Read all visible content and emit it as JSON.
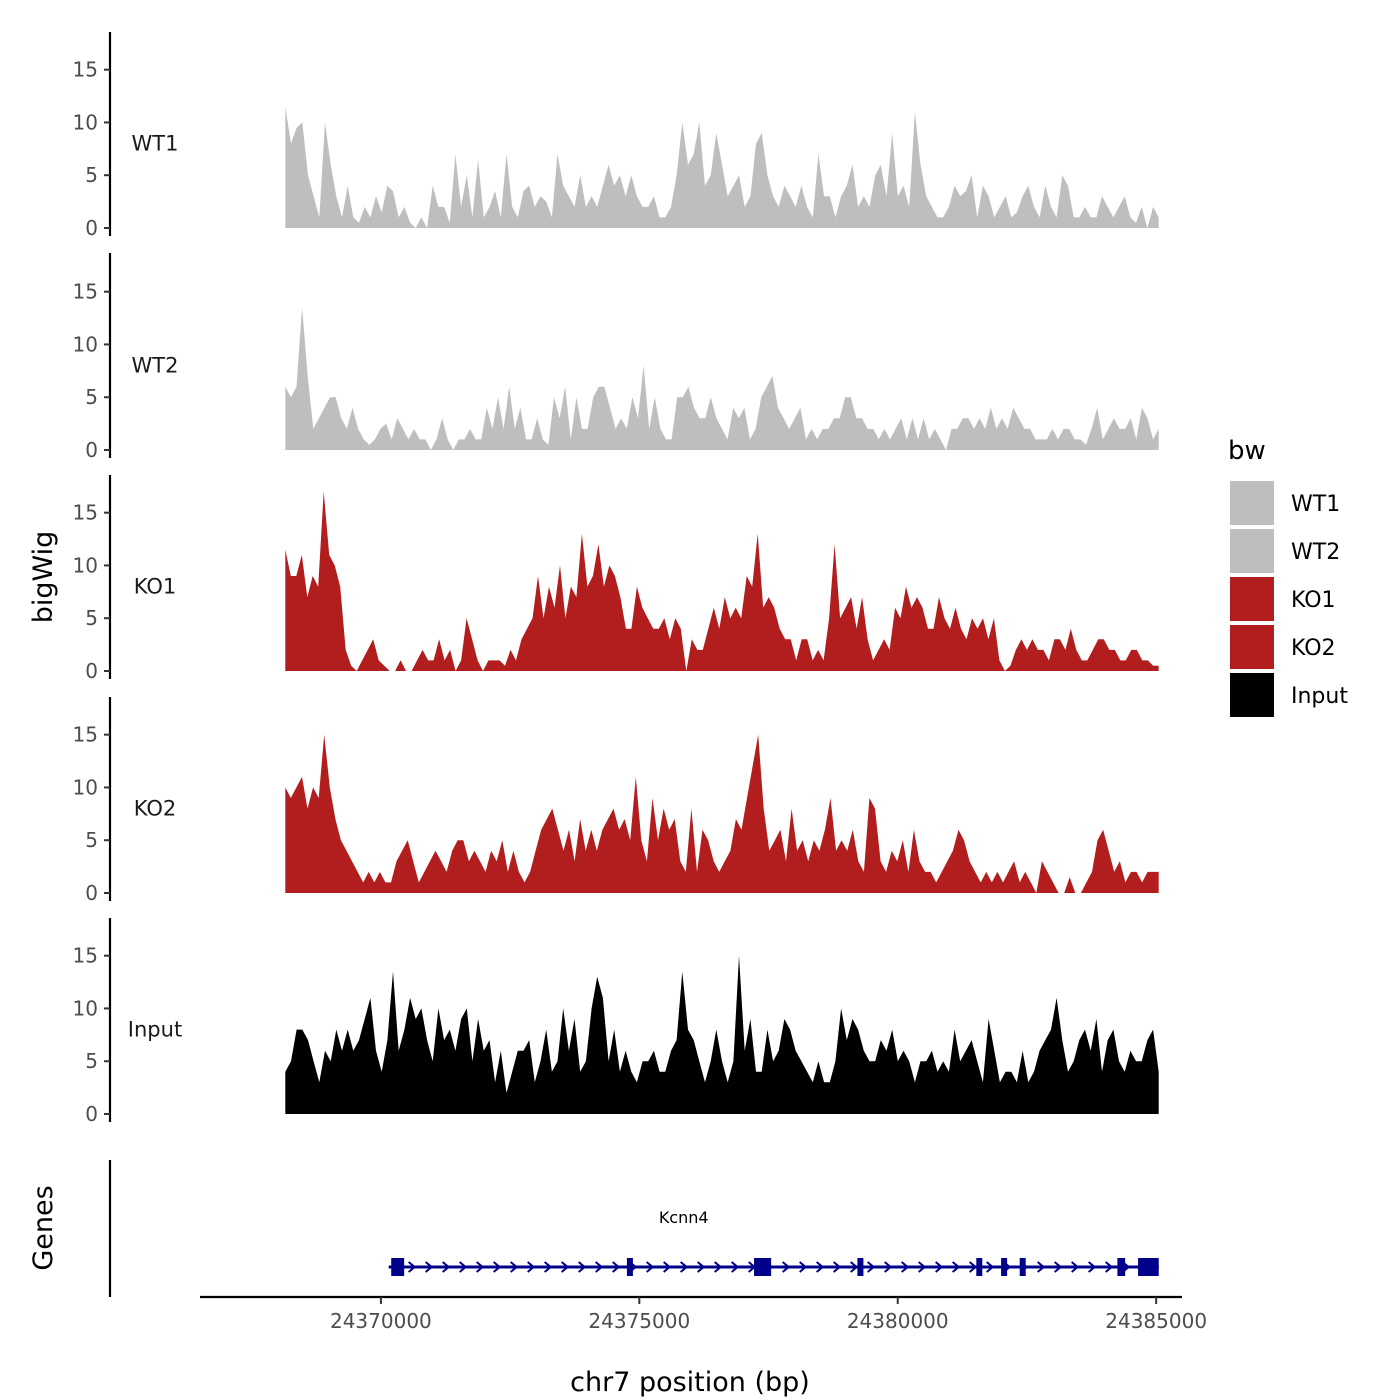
{
  "chart_data": {
    "type": "area",
    "title": "",
    "ylabel": "bigWig",
    "xlabel": "chr7 position (bp)",
    "x_range": [
      24366500,
      24385500
    ],
    "x_ticks": [
      24370000,
      24375000,
      24380000,
      24385000
    ],
    "x_tick_labels": [
      "24370000",
      "24375000",
      "24380000",
      "24385000"
    ],
    "ylim": [
      0,
      18
    ],
    "y_ticks": [
      0,
      5,
      10,
      15
    ],
    "y_tick_labels": [
      "0",
      "5",
      "10",
      "15"
    ],
    "data_start": 24368150,
    "data_end": 24385050,
    "grid": false,
    "legend_position": "right",
    "legend": {
      "title": "bw",
      "entries": [
        {
          "label": "WT1",
          "color": "#bebebe"
        },
        {
          "label": "WT2",
          "color": "#bebebe"
        },
        {
          "label": "KO1",
          "color": "#b21e1e"
        },
        {
          "label": "KO2",
          "color": "#b21e1e"
        },
        {
          "label": "Input",
          "color": "#000000"
        }
      ]
    },
    "series": [
      {
        "name": "WT1",
        "color": "#bebebe",
        "values": [
          11.5,
          8,
          9.5,
          10,
          5,
          3,
          1,
          10,
          6,
          3,
          1,
          4,
          1,
          0.5,
          2,
          1,
          3,
          1.5,
          4,
          3.5,
          1,
          2,
          0.5,
          0,
          1,
          0,
          4,
          2,
          2,
          0.5,
          7,
          2,
          5,
          1,
          6.5,
          1,
          2,
          3.5,
          1,
          7,
          2,
          1,
          3.5,
          4,
          2,
          3,
          2.5,
          1,
          7,
          4,
          3,
          2,
          5,
          2,
          3,
          2,
          4,
          6,
          4,
          5,
          3,
          5,
          3,
          2,
          2,
          3,
          1,
          1,
          2,
          5,
          10,
          6,
          7,
          10,
          4,
          5,
          9,
          6,
          3,
          4,
          5,
          2,
          3,
          8,
          9,
          5,
          3,
          2,
          4,
          3,
          2,
          4,
          2,
          1,
          7,
          3,
          3,
          1,
          3,
          4,
          6,
          2,
          3,
          2,
          5,
          6,
          3,
          9,
          3,
          4,
          2,
          11,
          6,
          3,
          2,
          1,
          1,
          2,
          4,
          3,
          3.5,
          5,
          1,
          4,
          3,
          1,
          2,
          3,
          1,
          1.5,
          3,
          4,
          2,
          1,
          4,
          2,
          1,
          5,
          4,
          1,
          1,
          2,
          1,
          1,
          3,
          2,
          1,
          2,
          3,
          1,
          0.5,
          2,
          0,
          2,
          1
        ]
      },
      {
        "name": "WT2",
        "color": "#bebebe",
        "values": [
          6,
          5,
          6,
          13.5,
          7,
          2,
          3,
          4,
          5,
          5,
          3,
          2,
          4,
          2,
          1,
          0.5,
          1,
          2,
          2.5,
          1,
          3,
          2,
          1,
          2,
          1,
          1,
          0,
          1,
          3,
          1,
          0,
          1,
          1,
          2,
          1,
          1,
          4,
          2,
          5,
          2,
          6,
          2,
          4,
          1,
          1,
          3,
          1,
          0.5,
          5,
          3,
          6,
          1,
          5,
          2,
          2,
          5,
          6,
          6,
          4,
          2,
          3,
          2,
          5,
          3,
          8,
          2,
          5,
          2,
          1,
          1,
          5,
          5,
          6,
          4,
          3,
          3,
          5,
          3,
          2,
          1,
          4,
          3,
          4,
          1,
          2,
          5,
          6,
          7,
          4,
          3,
          2,
          3,
          4,
          1,
          2,
          1,
          2,
          2,
          3,
          3,
          5,
          5,
          3,
          3,
          2,
          2,
          1,
          2,
          1,
          2,
          3,
          1,
          3,
          1,
          3,
          1,
          2,
          1,
          0,
          2,
          2,
          3,
          3,
          2,
          3,
          2,
          4,
          2,
          3,
          2,
          4,
          3,
          2,
          2,
          1,
          1,
          1,
          2,
          1,
          2,
          2,
          1,
          1,
          0.5,
          2,
          4,
          1,
          2,
          3,
          2,
          2,
          3,
          1,
          4,
          3,
          1,
          2
        ]
      },
      {
        "name": "KO1",
        "color": "#b21e1e",
        "values": [
          11.5,
          9,
          9,
          11,
          7,
          9,
          8,
          17,
          11,
          10,
          8,
          2,
          0.5,
          0,
          1,
          2,
          3,
          1,
          0.5,
          0,
          0,
          1,
          0,
          0,
          1,
          2,
          1,
          1,
          3,
          1,
          2,
          0,
          1,
          5,
          3,
          1,
          0,
          1,
          1,
          1,
          0.5,
          2,
          1,
          3,
          4,
          5,
          9,
          5,
          8,
          6,
          10,
          5,
          8,
          7,
          13,
          8,
          9,
          12,
          8,
          10,
          9,
          7,
          4,
          4,
          8,
          6,
          5,
          4,
          4,
          5,
          3,
          5,
          4,
          0,
          3,
          2,
          2,
          4,
          6,
          4,
          7,
          5,
          6,
          5,
          9,
          8,
          13,
          6,
          7,
          6,
          4,
          3,
          3,
          1,
          3,
          3,
          1,
          2,
          1,
          5,
          12,
          5,
          6,
          7,
          4,
          7,
          3,
          1,
          2,
          3,
          2,
          6,
          5,
          8,
          6,
          7,
          6,
          4,
          4,
          7,
          5,
          4,
          6,
          4,
          3,
          5,
          4,
          5,
          3,
          5,
          1,
          0,
          0.5,
          2,
          3,
          2,
          3,
          2,
          2,
          1,
          3,
          3,
          2,
          4,
          2,
          1,
          1,
          2,
          3,
          3,
          2,
          2,
          1,
          1,
          2,
          2,
          1,
          1,
          0.5,
          0.5
        ]
      },
      {
        "name": "KO2",
        "color": "#b21e1e",
        "values": [
          10,
          9,
          10,
          11,
          8,
          10,
          9,
          15,
          10,
          7,
          5,
          4,
          3,
          2,
          1,
          2,
          1,
          2,
          1,
          1,
          3,
          4,
          5,
          3,
          1,
          2,
          3,
          4,
          3,
          2,
          4,
          5,
          5,
          3,
          4,
          3,
          2,
          4,
          3,
          5,
          2,
          4,
          2,
          1,
          2,
          4,
          6,
          7,
          8,
          6,
          4,
          6,
          3,
          7,
          4,
          6,
          4,
          6,
          7,
          8,
          6,
          7,
          5,
          11,
          5,
          3,
          9,
          5,
          8,
          6,
          7,
          3,
          2,
          8,
          2,
          6,
          5,
          3,
          2,
          3,
          4,
          7,
          6,
          9,
          12,
          15,
          8,
          4,
          5,
          6,
          3,
          8,
          4,
          5,
          3,
          5,
          4,
          6,
          9,
          4,
          5,
          4,
          6,
          3,
          2,
          9,
          8,
          3,
          2,
          4,
          3,
          5,
          2,
          6,
          3,
          2,
          2,
          1,
          2,
          3,
          4,
          6,
          5,
          3,
          2,
          1,
          2,
          1,
          2,
          1,
          2,
          3,
          1,
          2,
          1,
          0,
          3,
          2,
          1,
          0,
          0,
          1.5,
          0,
          0,
          1,
          2,
          5,
          6,
          4,
          2,
          3,
          1,
          2,
          2,
          1,
          2,
          2,
          2
        ]
      },
      {
        "name": "Input",
        "color": "#000000",
        "values": [
          4,
          5,
          8,
          8,
          7,
          5,
          3,
          6,
          5,
          8,
          6,
          8,
          6,
          7,
          9,
          11,
          6,
          4,
          7,
          13.5,
          6,
          8,
          11,
          9,
          10,
          7,
          5,
          10,
          7,
          8,
          6,
          9,
          10,
          5,
          9,
          6,
          7,
          3,
          6,
          2,
          4,
          6,
          6,
          7,
          3,
          5,
          8,
          4,
          5,
          10,
          6,
          9,
          4,
          5,
          10,
          13,
          11,
          5,
          8,
          4,
          6,
          4,
          3,
          5,
          5,
          6,
          4,
          4,
          6,
          7,
          13.5,
          8,
          7,
          5,
          3,
          5,
          8,
          5,
          3,
          5,
          15,
          6,
          9,
          4,
          4,
          8,
          5,
          6,
          9,
          8,
          6,
          5,
          4,
          3,
          5,
          3,
          3,
          5,
          10,
          7,
          9,
          8,
          6,
          5,
          5,
          7,
          6,
          8,
          5,
          6,
          5,
          3,
          5,
          5,
          6,
          4,
          5,
          4,
          8,
          5,
          6,
          7,
          5,
          3,
          9,
          6,
          3,
          4,
          4,
          3,
          6,
          3,
          4,
          6,
          7,
          8,
          11,
          7,
          4,
          5,
          7,
          8,
          6,
          9,
          4,
          7,
          8,
          5,
          4,
          6,
          5,
          5,
          7,
          8,
          4
        ]
      }
    ],
    "gene_track": {
      "label": "Genes",
      "gene_name": "Kcnn4",
      "color": "#00008b",
      "strand": "+",
      "start": 24370150,
      "end": 24385050,
      "exons": [
        [
          24370200,
          24370450
        ],
        [
          24374760,
          24374860
        ],
        [
          24377220,
          24377550
        ],
        [
          24379220,
          24379330
        ],
        [
          24381520,
          24381620
        ],
        [
          24382000,
          24382110
        ],
        [
          24382360,
          24382460
        ],
        [
          24384250,
          24384400
        ],
        [
          24384650,
          24385050
        ]
      ]
    }
  }
}
